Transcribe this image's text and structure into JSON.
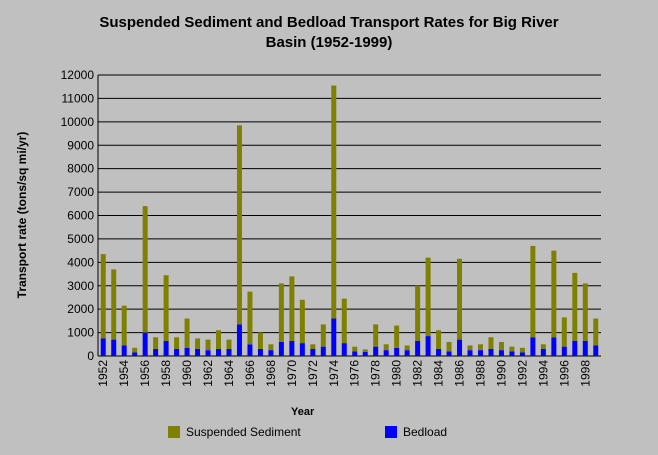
{
  "chart_data": {
    "type": "bar",
    "stacked": true,
    "title_lines": [
      "Suspended Sediment and Bedload Transport Rates for Big River",
      "Basin (1952-1999)"
    ],
    "xlabel": "Year",
    "ylabel": "Transport rate (tons/sq mi/yr)",
    "ylim": [
      0,
      12000
    ],
    "yticks": [
      0,
      1000,
      2000,
      3000,
      4000,
      5000,
      6000,
      7000,
      8000,
      9000,
      10000,
      11000,
      12000
    ],
    "grid": true,
    "legend_placement": "bottom",
    "categories": [
      "1952",
      "1953",
      "1954",
      "1955",
      "1956",
      "1957",
      "1958",
      "1959",
      "1960",
      "1961",
      "1962",
      "1963",
      "1964",
      "1965",
      "1966",
      "1967",
      "1968",
      "1969",
      "1970",
      "1971",
      "1972",
      "1973",
      "1974",
      "1975",
      "1976",
      "1977",
      "1978",
      "1979",
      "1980",
      "1981",
      "1982",
      "1983",
      "1984",
      "1985",
      "1986",
      "1987",
      "1988",
      "1989",
      "1990",
      "1991",
      "1992",
      "1993",
      "1994",
      "1995",
      "1996",
      "1997",
      "1998",
      "1999"
    ],
    "x_tick_labels": [
      "1952",
      "1954",
      "1956",
      "1958",
      "1960",
      "1962",
      "1964",
      "1966",
      "1968",
      "1970",
      "1972",
      "1974",
      "1976",
      "1978",
      "1980",
      "1982",
      "1984",
      "1986",
      "1988",
      "1990",
      "1992",
      "1994",
      "1996",
      "1998"
    ],
    "series": [
      {
        "name": "Bedload",
        "color": "#0000ff",
        "values": [
          750,
          700,
          450,
          150,
          1000,
          300,
          650,
          300,
          350,
          300,
          250,
          300,
          300,
          1350,
          500,
          300,
          250,
          600,
          650,
          550,
          300,
          400,
          1600,
          550,
          200,
          180,
          400,
          250,
          350,
          250,
          650,
          850,
          300,
          200,
          700,
          250,
          250,
          300,
          250,
          200,
          150,
          800,
          300,
          800,
          400,
          650,
          650,
          450
        ]
      },
      {
        "name": "Suspended Sediment",
        "color": "#808000",
        "values": [
          3600,
          3000,
          1700,
          200,
          5400,
          500,
          2800,
          500,
          1250,
          450,
          450,
          800,
          400,
          8500,
          2250,
          700,
          250,
          2500,
          2750,
          1850,
          200,
          950,
          9950,
          1900,
          200,
          100,
          950,
          250,
          950,
          200,
          2350,
          3350,
          800,
          400,
          3450,
          200,
          250,
          500,
          350,
          200,
          200,
          3900,
          200,
          3700,
          1250,
          2900,
          2450,
          1150
        ]
      }
    ]
  }
}
